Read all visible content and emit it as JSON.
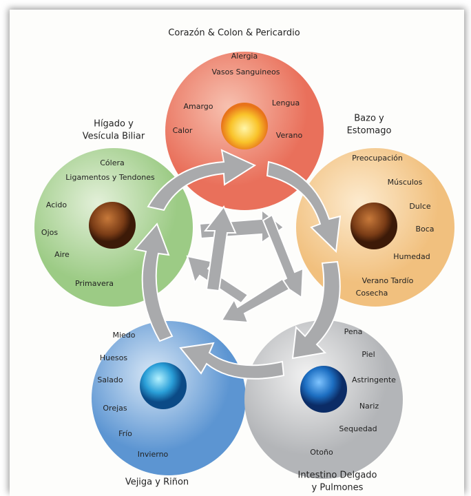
{
  "title": "Corazón & Colon & Pericardio",
  "nodes": [
    {
      "title": [
        "Corazón & Colon & Pericardio"
      ],
      "items": [
        "Alergia",
        "Vasos Sanguineos",
        "Amargo",
        "Lengua",
        "Calor",
        "Verano"
      ]
    },
    {
      "title": [
        "Bazo y",
        "Estomago"
      ],
      "items": [
        "Preocupación",
        "Músculos",
        "Dulce",
        "Boca",
        "Humedad",
        "Verano Tardío",
        "Cosecha"
      ]
    },
    {
      "title": [
        "Intestino Delgado",
        "y Pulmones"
      ],
      "items": [
        "Pena",
        "Piel",
        "Astringente",
        "Nariz",
        "Sequedad",
        "Otoño"
      ]
    },
    {
      "title": [
        "Vejiga y Riñon"
      ],
      "items": [
        "Miedo",
        "Huesos",
        "Salado",
        "Orejas",
        "Frío",
        "Invierno"
      ]
    },
    {
      "title": [
        "Hígado y",
        "Vesícula Biliar"
      ],
      "items": [
        "Cólera",
        "Ligamentos y Tendones",
        "Acido",
        "Ojos",
        "Aire",
        "Primavera"
      ]
    }
  ]
}
